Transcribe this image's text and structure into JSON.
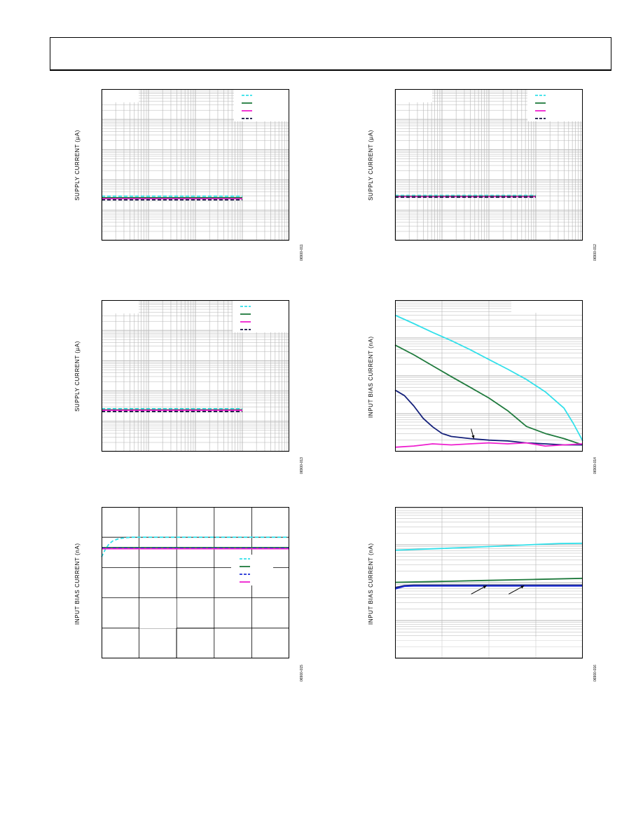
{
  "page": {
    "header": ""
  },
  "colors": {
    "cyan": "#33e0ea",
    "green": "#1f7a3d",
    "magenta": "#ee1fcf",
    "navy": "#14207a",
    "black": "#101040",
    "blue": "#1f2fd8",
    "grid": "#b5b5b5"
  },
  "chart_data": [
    {
      "id": "fig11",
      "type": "line",
      "ylabel": "SUPPLY CURRENT (µA)",
      "figure_code": "06900-011",
      "xscale": "log",
      "yscale": "log",
      "xlim": [
        1,
        10000
      ],
      "ylim": [
        1,
        100000
      ],
      "legend": "top-right",
      "grid": true,
      "series": [
        {
          "color": "cyan",
          "dash": true,
          "x": [
            1,
            1000
          ],
          "y": [
            29,
            29
          ]
        },
        {
          "color": "green",
          "dash": false,
          "x": [
            1,
            1000
          ],
          "y": [
            26,
            26
          ]
        },
        {
          "color": "magenta",
          "dash": false,
          "x": [
            1,
            1000
          ],
          "y": [
            24,
            24
          ]
        },
        {
          "color": "black",
          "dash": true,
          "x": [
            1,
            1000
          ],
          "y": [
            22,
            22
          ]
        }
      ]
    },
    {
      "id": "fig12",
      "type": "line",
      "ylabel": "SUPPLY CURRENT (µA)",
      "figure_code": "06900-012",
      "xscale": "log",
      "yscale": "log",
      "xlim": [
        1,
        10000
      ],
      "ylim": [
        1,
        100000
      ],
      "legend": "top-right",
      "grid": true,
      "series": [
        {
          "color": "cyan",
          "dash": true,
          "x": [
            1,
            1000
          ],
          "y": [
            31,
            31
          ]
        },
        {
          "color": "green",
          "dash": false,
          "x": [
            1,
            1000
          ],
          "y": [
            29,
            29
          ]
        },
        {
          "color": "magenta",
          "dash": false,
          "x": [
            1,
            1000
          ],
          "y": [
            28,
            28
          ]
        },
        {
          "color": "black",
          "dash": true,
          "x": [
            1,
            1000
          ],
          "y": [
            27,
            27
          ]
        }
      ]
    },
    {
      "id": "fig13",
      "type": "line",
      "ylabel": "SUPPLY CURRENT (µA)",
      "figure_code": "06900-013",
      "xscale": "log",
      "yscale": "log",
      "xlim": [
        1,
        10000
      ],
      "ylim": [
        1,
        100000
      ],
      "legend": "top-right",
      "grid": true,
      "series": [
        {
          "color": "cyan",
          "dash": true,
          "x": [
            1,
            1000
          ],
          "y": [
            26,
            26
          ]
        },
        {
          "color": "green",
          "dash": false,
          "x": [
            1,
            1000
          ],
          "y": [
            24,
            24
          ]
        },
        {
          "color": "magenta",
          "dash": false,
          "x": [
            1,
            1000
          ],
          "y": [
            23,
            23
          ]
        },
        {
          "color": "black",
          "dash": true,
          "x": [
            1,
            1000
          ],
          "y": [
            21,
            21
          ]
        }
      ]
    },
    {
      "id": "fig14",
      "type": "line",
      "ylabel": "INPUT BIAS CURRENT (nA)",
      "figure_code": "06900-014",
      "xscale": "linear",
      "yscale": "log",
      "xlim": [
        0,
        100
      ],
      "ylim": [
        0.01,
        100
      ],
      "legend": "",
      "grid": true,
      "series": [
        {
          "color": "cyan",
          "dash": false,
          "x": [
            0,
            10,
            20,
            30,
            40,
            50,
            60,
            70,
            80,
            90,
            95,
            100
          ],
          "y": [
            40,
            24,
            14,
            8.5,
            4.9,
            2.7,
            1.5,
            0.8,
            0.38,
            0.14,
            0.055,
            0.019
          ]
        },
        {
          "color": "green",
          "dash": false,
          "x": [
            0,
            10,
            20,
            30,
            40,
            50,
            60,
            70,
            80,
            90,
            100
          ],
          "y": [
            6.5,
            3.6,
            1.85,
            0.95,
            0.5,
            0.26,
            0.12,
            0.046,
            0.03,
            0.022,
            0.015
          ]
        },
        {
          "color": "navy",
          "dash": false,
          "x": [
            0,
            5,
            10,
            15,
            20,
            25,
            30,
            40,
            50,
            60,
            70,
            80,
            90,
            100
          ],
          "y": [
            0.42,
            0.3,
            0.16,
            0.075,
            0.045,
            0.03,
            0.025,
            0.022,
            0.02,
            0.019,
            0.017,
            0.016,
            0.015,
            0.015
          ]
        },
        {
          "color": "magenta",
          "dash": false,
          "x": [
            0,
            10,
            20,
            30,
            40,
            50,
            60,
            70,
            80,
            90,
            100
          ],
          "y": [
            0.013,
            0.014,
            0.016,
            0.015,
            0.016,
            0.017,
            0.016,
            0.017,
            0.014,
            0.015,
            0.016
          ]
        }
      ],
      "annotations": [
        {
          "type": "arrow",
          "x": 42,
          "y": 0.022
        }
      ]
    },
    {
      "id": "fig15",
      "type": "line",
      "ylabel": "INPUT BIAS CURRENT (nA)",
      "figure_code": "06900-015",
      "xscale": "linear",
      "yscale": "linear",
      "xlim": [
        0,
        5
      ],
      "ylim": [
        0,
        5
      ],
      "legend": "center-right",
      "grid": true,
      "series": [
        {
          "color": "cyan",
          "dash": true,
          "x": [
            0,
            0.1,
            0.2,
            0.3,
            0.45,
            0.6,
            0.8,
            1.0,
            1.3,
            5.0
          ],
          "y": [
            3.35,
            3.6,
            3.78,
            3.88,
            3.95,
            3.98,
            4.0,
            4.0,
            4.0,
            4.0
          ]
        },
        {
          "color": "green",
          "dash": false,
          "x": [
            0,
            5
          ],
          "y": [
            3.66,
            3.66
          ]
        },
        {
          "color": "blue",
          "dash": true,
          "x": [
            0,
            5
          ],
          "y": [
            3.64,
            3.64
          ]
        },
        {
          "color": "magenta",
          "dash": false,
          "x": [
            0,
            5
          ],
          "y": [
            3.62,
            3.62
          ]
        }
      ]
    },
    {
      "id": "fig16",
      "type": "line",
      "ylabel": "INPUT BIAS CURRENT (nA)",
      "figure_code": "06900-016",
      "xscale": "linear",
      "yscale": "log",
      "xlim": [
        0,
        4
      ],
      "ylim": [
        0.1,
        1000
      ],
      "legend": "",
      "grid": true,
      "series": [
        {
          "color": "cyan",
          "dash": false,
          "x": [
            0,
            1,
            2,
            3,
            3.5,
            4
          ],
          "y": [
            72,
            80,
            90,
            102,
            108,
            110
          ]
        },
        {
          "color": "green",
          "dash": false,
          "x": [
            0,
            1,
            2,
            3,
            4
          ],
          "y": [
            10.2,
            10.8,
            11.5,
            12.2,
            13
          ]
        },
        {
          "color": "navy",
          "dash": false,
          "x": [
            0,
            0.2,
            0.4,
            4
          ],
          "y": [
            7.4,
            8.4,
            8.6,
            8.6
          ]
        },
        {
          "color": "blue",
          "dash": false,
          "x": [
            0,
            0.2,
            0.4,
            4
          ],
          "y": [
            6.8,
            8.0,
            8.2,
            8.2
          ]
        }
      ],
      "annotations": [
        {
          "type": "arrow",
          "x": 1.95,
          "y": 8.3
        },
        {
          "type": "arrow",
          "x": 2.75,
          "y": 8.3
        }
      ]
    }
  ]
}
